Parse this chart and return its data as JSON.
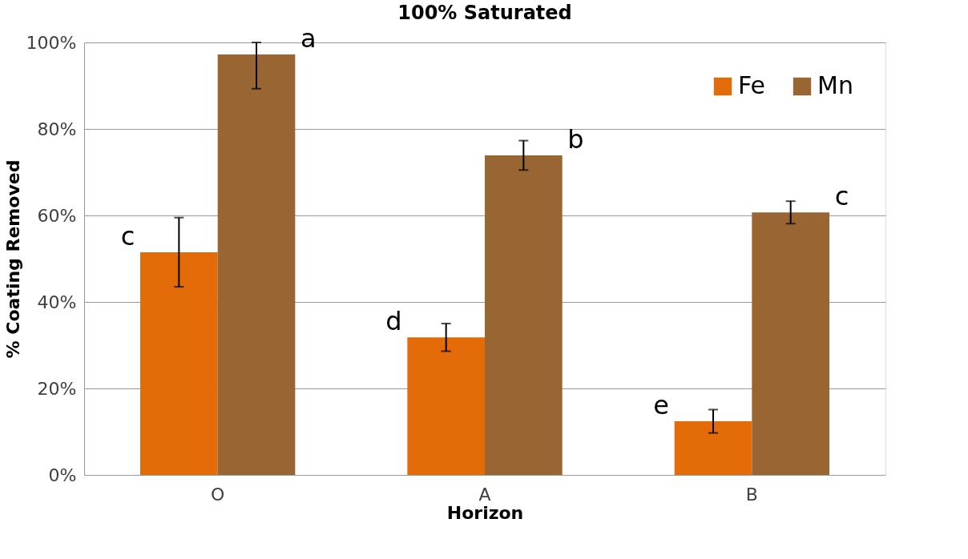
{
  "chart_data": {
    "type": "bar",
    "title": "100% Saturated",
    "xlabel": "Horizon",
    "ylabel": "% Coating Removed",
    "categories": [
      "O",
      "A",
      "B"
    ],
    "series": [
      {
        "name": "Fe",
        "color": "#e36c09",
        "values": [
          51.5,
          31.8,
          12.4
        ],
        "errors": [
          8,
          3.2,
          2.7
        ]
      },
      {
        "name": "Mn",
        "color": "#996633",
        "values": [
          97.2,
          73.9,
          60.7
        ],
        "errors": [
          [
            89.3,
            100
          ],
          3.4,
          2.6
        ]
      }
    ],
    "ylim": [
      0,
      100
    ],
    "yticks": [
      {
        "value": 0,
        "label": "0%"
      },
      {
        "value": 20,
        "label": "20%"
      },
      {
        "value": 40,
        "label": "40%"
      },
      {
        "value": 60,
        "label": "60%"
      },
      {
        "value": 80,
        "label": "80%"
      },
      {
        "value": 100,
        "label": "100%"
      }
    ],
    "annotations": [
      "c",
      "a",
      "d",
      "b",
      "e",
      "c"
    ],
    "grid": "y",
    "legend": "top right"
  }
}
